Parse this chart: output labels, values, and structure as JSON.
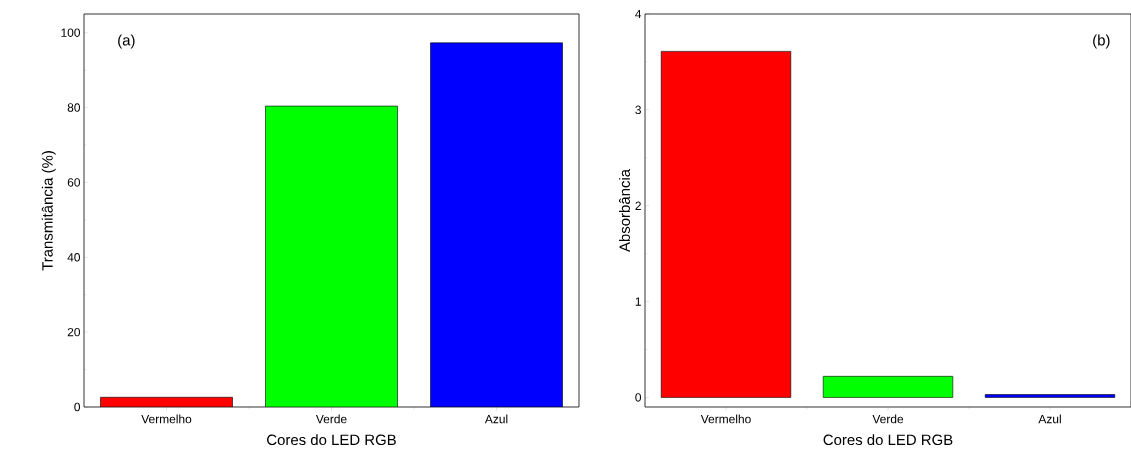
{
  "chart_data": [
    {
      "type": "bar",
      "categories": [
        "Vermelho",
        "Verde",
        "Azul"
      ],
      "values": [
        2.6,
        80.4,
        97.3
      ],
      "colors": [
        "#ff0000",
        "#00ff00",
        "#0000ff"
      ],
      "ylim": [
        0,
        105
      ],
      "yticks": [
        0,
        20,
        40,
        60,
        80,
        100
      ],
      "xlabel": "Cores do LED RGB",
      "ylabel": "Transmitância (%)",
      "annotations": [
        "(a)"
      ]
    },
    {
      "type": "bar",
      "categories": [
        "Vermelho",
        "Verde",
        "Azul"
      ],
      "values": [
        3.61,
        0.22,
        0.03
      ],
      "colors": [
        "#ff0000",
        "#00ff00",
        "#0000ff"
      ],
      "ylim": [
        -0.1,
        4
      ],
      "yticks": [
        0,
        1,
        2,
        3,
        4
      ],
      "xlabel": "Cores do LED RGB",
      "ylabel": "Absorbância",
      "annotations": [
        "(b)"
      ]
    }
  ]
}
